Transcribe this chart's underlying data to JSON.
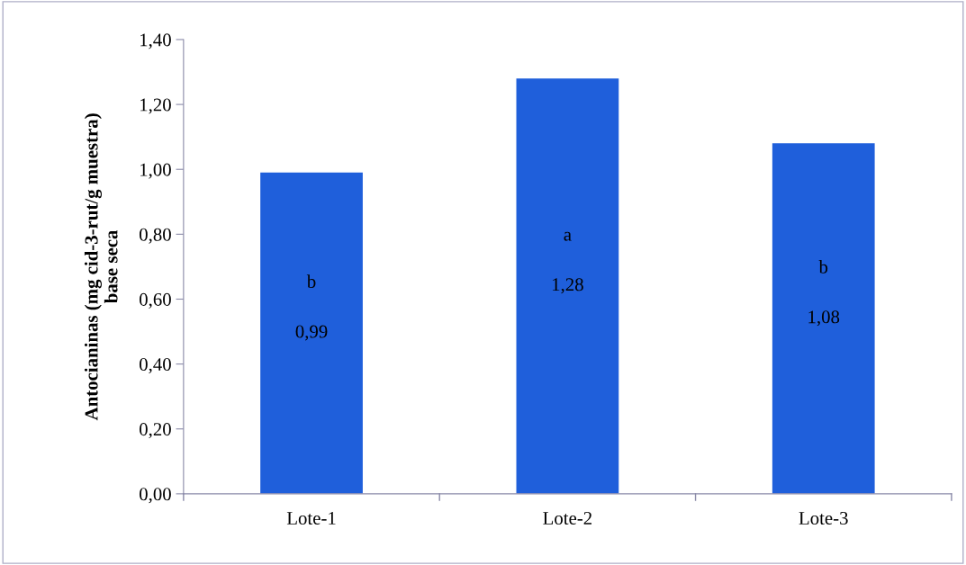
{
  "chart_data": {
    "type": "bar",
    "ylabel": "Antocianinas (mg cid-3-rut/g muestra)\nbase seca",
    "categories": [
      "Lote-1",
      "Lote-2",
      "Lote-3"
    ],
    "values": [
      0.99,
      1.28,
      1.08
    ],
    "value_labels": [
      "0,99",
      "1,28",
      "1,08"
    ],
    "color": "#1f5fdb",
    "ylim": [
      0,
      1.4
    ],
    "yticks": [
      {
        "value": 0,
        "label": "0,00"
      },
      {
        "value": 0.2,
        "label": "0,20"
      },
      {
        "value": 0.4,
        "label": "0,40"
      },
      {
        "value": 0.6,
        "label": "0,60"
      },
      {
        "value": 0.8,
        "label": "0,80"
      },
      {
        "value": 1.0,
        "label": "1,00"
      },
      {
        "value": 1.2,
        "label": "1,20"
      },
      {
        "value": 1.4,
        "label": "1,40"
      }
    ],
    "annotations": [
      "b",
      "a",
      "b"
    ],
    "grid": false
  }
}
